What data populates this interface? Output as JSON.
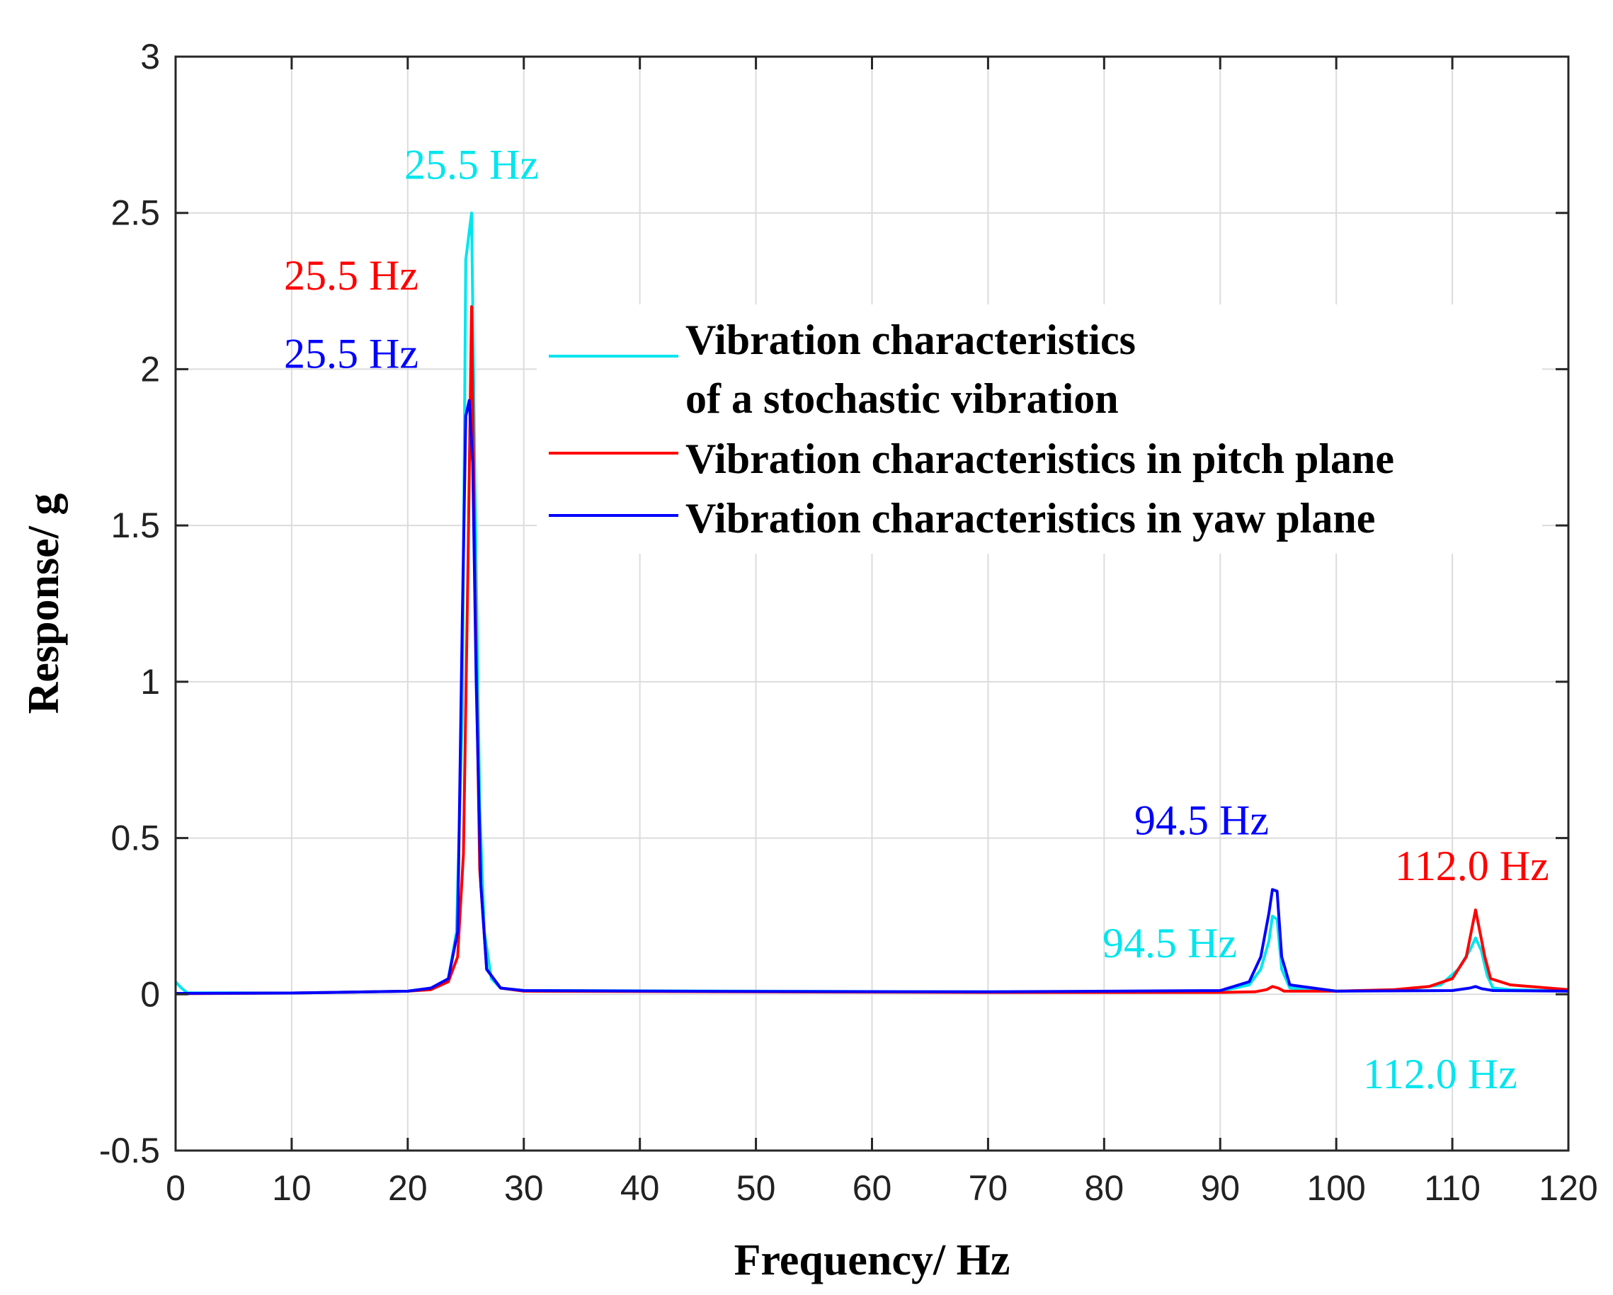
{
  "chart_data": {
    "type": "line",
    "title": "",
    "xlabel": "Frequency/ Hz",
    "ylabel": "Response/ g",
    "xlim": [
      0,
      120
    ],
    "ylim": [
      -0.5,
      3
    ],
    "xticks": [
      0,
      10,
      20,
      30,
      40,
      50,
      60,
      70,
      80,
      90,
      100,
      110,
      120
    ],
    "yticks": [
      -0.5,
      0,
      0.5,
      1,
      1.5,
      2,
      2.5,
      3
    ],
    "xtick_labels": [
      "0",
      "10",
      "20",
      "30",
      "40",
      "50",
      "60",
      "70",
      "80",
      "90",
      "100",
      "110",
      "120"
    ],
    "ytick_labels": [
      "-0.5",
      "0",
      "0.5",
      "1",
      "1.5",
      "2",
      "2.5",
      "3"
    ],
    "grid": true,
    "legend_position": "top-right",
    "series": [
      {
        "name": "Vibration characteristics of a stochastic vibration",
        "legend_lines": [
          "Vibration characteristics",
          "of a stochastic vibration"
        ],
        "color": "#00e5ee",
        "points": [
          [
            0,
            0.04
          ],
          [
            0.5,
            0.02
          ],
          [
            1,
            0.005
          ],
          [
            10,
            0.004
          ],
          [
            20,
            0.01
          ],
          [
            22,
            0.02
          ],
          [
            23.5,
            0.05
          ],
          [
            24.2,
            0.2
          ],
          [
            24.7,
            0.9
          ],
          [
            25,
            2.35
          ],
          [
            25.5,
            2.5
          ],
          [
            25.8,
            1.6
          ],
          [
            26.2,
            0.6
          ],
          [
            26.6,
            0.2
          ],
          [
            27.2,
            0.05
          ],
          [
            28,
            0.02
          ],
          [
            30,
            0.012
          ],
          [
            50,
            0.01
          ],
          [
            70,
            0.008
          ],
          [
            90,
            0.01
          ],
          [
            92.5,
            0.03
          ],
          [
            93.5,
            0.08
          ],
          [
            94.2,
            0.17
          ],
          [
            94.5,
            0.25
          ],
          [
            94.9,
            0.24
          ],
          [
            95.3,
            0.08
          ],
          [
            96,
            0.02
          ],
          [
            100,
            0.01
          ],
          [
            106,
            0.015
          ],
          [
            109,
            0.03
          ],
          [
            110.5,
            0.08
          ],
          [
            111.5,
            0.14
          ],
          [
            112,
            0.18
          ],
          [
            112.5,
            0.14
          ],
          [
            113,
            0.06
          ],
          [
            113.5,
            0.02
          ],
          [
            115,
            0.015
          ],
          [
            120,
            0.01
          ]
        ]
      },
      {
        "name": "Vibration characteristics in pitch plane",
        "legend_lines": [
          "Vibration characteristics in pitch plane"
        ],
        "color": "#ff0000",
        "points": [
          [
            0,
            0.002
          ],
          [
            10,
            0.004
          ],
          [
            20,
            0.01
          ],
          [
            22,
            0.015
          ],
          [
            23.5,
            0.04
          ],
          [
            24.3,
            0.12
          ],
          [
            24.8,
            0.45
          ],
          [
            25.2,
            1.4
          ],
          [
            25.5,
            2.2
          ],
          [
            25.8,
            1.3
          ],
          [
            26.2,
            0.4
          ],
          [
            26.8,
            0.08
          ],
          [
            28,
            0.02
          ],
          [
            30,
            0.01
          ],
          [
            50,
            0.008
          ],
          [
            70,
            0.006
          ],
          [
            90,
            0.006
          ],
          [
            93,
            0.008
          ],
          [
            94,
            0.015
          ],
          [
            94.5,
            0.025
          ],
          [
            95,
            0.02
          ],
          [
            95.5,
            0.01
          ],
          [
            100,
            0.01
          ],
          [
            105,
            0.015
          ],
          [
            108,
            0.025
          ],
          [
            110,
            0.05
          ],
          [
            111.2,
            0.12
          ],
          [
            112,
            0.27
          ],
          [
            112.8,
            0.12
          ],
          [
            113.3,
            0.05
          ],
          [
            115,
            0.03
          ],
          [
            120,
            0.015
          ]
        ]
      },
      {
        "name": "Vibration characteristics in yaw plane",
        "legend_lines": [
          "Vibration characteristics in yaw plane"
        ],
        "color": "#0000ff",
        "points": [
          [
            0,
            0.003
          ],
          [
            10,
            0.004
          ],
          [
            20,
            0.01
          ],
          [
            22,
            0.02
          ],
          [
            23.5,
            0.05
          ],
          [
            24.3,
            0.2
          ],
          [
            24.7,
            1.2
          ],
          [
            25,
            1.85
          ],
          [
            25.3,
            1.9
          ],
          [
            25.6,
            1.7
          ],
          [
            25.9,
            1.0
          ],
          [
            26.3,
            0.35
          ],
          [
            26.8,
            0.08
          ],
          [
            28,
            0.02
          ],
          [
            30,
            0.012
          ],
          [
            50,
            0.009
          ],
          [
            70,
            0.008
          ],
          [
            90,
            0.012
          ],
          [
            92.5,
            0.04
          ],
          [
            93.5,
            0.12
          ],
          [
            94.2,
            0.26
          ],
          [
            94.5,
            0.335
          ],
          [
            94.9,
            0.33
          ],
          [
            95.3,
            0.12
          ],
          [
            96,
            0.03
          ],
          [
            100,
            0.01
          ],
          [
            110,
            0.012
          ],
          [
            111.5,
            0.02
          ],
          [
            112,
            0.025
          ],
          [
            112.5,
            0.018
          ],
          [
            113.5,
            0.012
          ],
          [
            120,
            0.01
          ]
        ]
      }
    ],
    "annotations": [
      {
        "text": "25.5 Hz",
        "color": "#00e5ee",
        "x": 25.5,
        "y": 2.5
      },
      {
        "text": "25.5 Hz",
        "color": "#ff0000",
        "x": 25.5,
        "y": 2.2
      },
      {
        "text": "25.5 Hz",
        "color": "#0000ff",
        "x": 25.5,
        "y": 1.9
      },
      {
        "text": "94.5 Hz",
        "color": "#0000ff",
        "x": 94.5,
        "y": 0.335
      },
      {
        "text": "94.5 Hz",
        "color": "#00e5ee",
        "x": 94.5,
        "y": 0.25
      },
      {
        "text": "112.0 Hz",
        "color": "#ff0000",
        "x": 112.0,
        "y": 0.27
      },
      {
        "text": "112.0 Hz",
        "color": "#00e5ee",
        "x": 112.0,
        "y": 0.18
      }
    ]
  }
}
